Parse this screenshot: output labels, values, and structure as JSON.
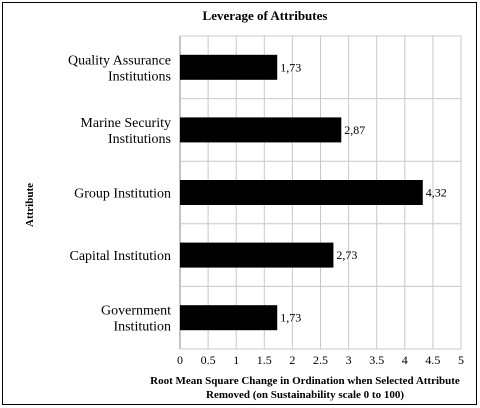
{
  "chart_data": {
    "type": "bar",
    "orientation": "horizontal",
    "title": "Leverage of Attributes",
    "ylabel": "Attribute",
    "xlabel_lines": [
      "Root Mean Square Change in Ordination when Selected Attribute",
      "Removed (on Sustainability  scale 0 to 100)"
    ],
    "categories": [
      [
        "Quality Assurance",
        "Institutions"
      ],
      [
        "Marine Security",
        "Institutions"
      ],
      [
        "Group Institution"
      ],
      [
        "Capital Institution"
      ],
      [
        "Government",
        "Institution"
      ]
    ],
    "values": [
      1.73,
      2.87,
      4.32,
      2.73,
      1.73
    ],
    "value_labels": [
      "1,73",
      "2,87",
      "4,32",
      "2,73",
      "1,73"
    ],
    "xlim": [
      0,
      5
    ],
    "xticks": [
      0,
      0.5,
      1,
      1.5,
      2,
      2.5,
      3,
      3.5,
      4,
      4.5,
      5
    ],
    "xtick_labels": [
      "0",
      "0.5",
      "1",
      "1.5",
      "2",
      "2.5",
      "3",
      "3.5",
      "4",
      "4.5",
      "5"
    ],
    "grid": true,
    "legend": "none",
    "colors": {
      "bar": "#000000",
      "grid": "#c8c8c8",
      "axis": "#888888"
    }
  }
}
